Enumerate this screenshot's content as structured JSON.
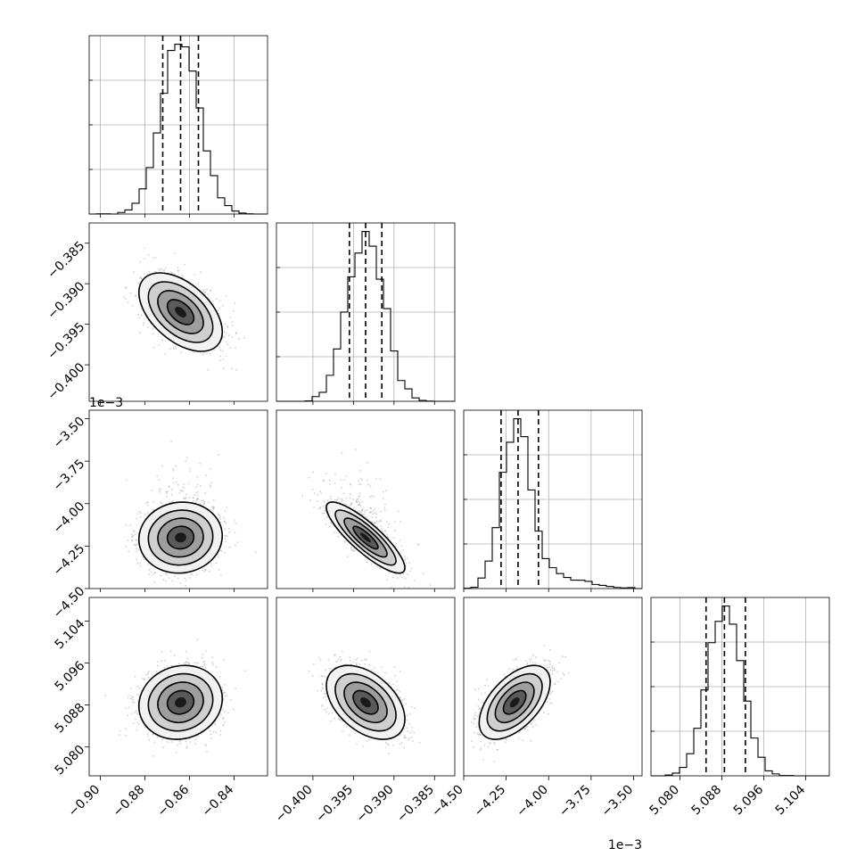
{
  "chart_data": {
    "type": "corner",
    "parameters": [
      {
        "range": [
          -0.905,
          -0.825
        ],
        "ticks": [
          -0.9,
          -0.88,
          -0.86,
          -0.84
        ],
        "tick_labels": [
          "−0.90",
          "−0.88",
          "−0.86",
          "−0.84"
        ],
        "scale_label": "",
        "mean": -0.864,
        "sd": 0.0085,
        "skew": 0
      },
      {
        "range": [
          -0.4045,
          -0.3825
        ],
        "ticks": [
          -0.4,
          -0.395,
          -0.39,
          -0.385
        ],
        "tick_labels": [
          "−0.400",
          "−0.395",
          "−0.390",
          "−0.385"
        ],
        "scale_label": "",
        "mean": -0.3935,
        "sd": 0.0022,
        "skew": 0
      },
      {
        "range": [
          -4.5,
          -3.45
        ],
        "ticks": [
          -4.5,
          -4.25,
          -4.0,
          -3.75,
          -3.5
        ],
        "tick_labels": [
          "−4.50",
          "−4.25",
          "−4.00",
          "−3.75",
          "−3.50"
        ],
        "scale_label": "1e−3",
        "mean": -4.2,
        "sd": 0.095,
        "skew": 2
      },
      {
        "range": [
          5.0745,
          5.1085
        ],
        "ticks": [
          5.08,
          5.088,
          5.096,
          5.104
        ],
        "tick_labels": [
          "5.080",
          "5.088",
          "5.096",
          "5.104"
        ],
        "scale_label": "",
        "mean": 5.0885,
        "sd": 0.0032,
        "skew": 0
      }
    ],
    "quantiles": [
      [
        -0.872,
        -0.864,
        -0.856
      ],
      [
        -0.3955,
        -0.3935,
        -0.3915
      ],
      [
        -4.28,
        -4.18,
        -4.06
      ],
      [
        5.085,
        5.0885,
        5.0925
      ]
    ],
    "correlations": [
      {
        "pair": [
          1,
          0
        ],
        "rho": -0.5
      },
      {
        "pair": [
          2,
          0
        ],
        "rho": 0.05
      },
      {
        "pair": [
          2,
          1
        ],
        "rho": -0.85
      },
      {
        "pair": [
          3,
          0
        ],
        "rho": 0.1
      },
      {
        "pair": [
          3,
          1
        ],
        "rho": -0.45
      },
      {
        "pair": [
          3,
          2
        ],
        "rho": 0.55
      }
    ],
    "histogram_bins": 25,
    "grid": true
  }
}
